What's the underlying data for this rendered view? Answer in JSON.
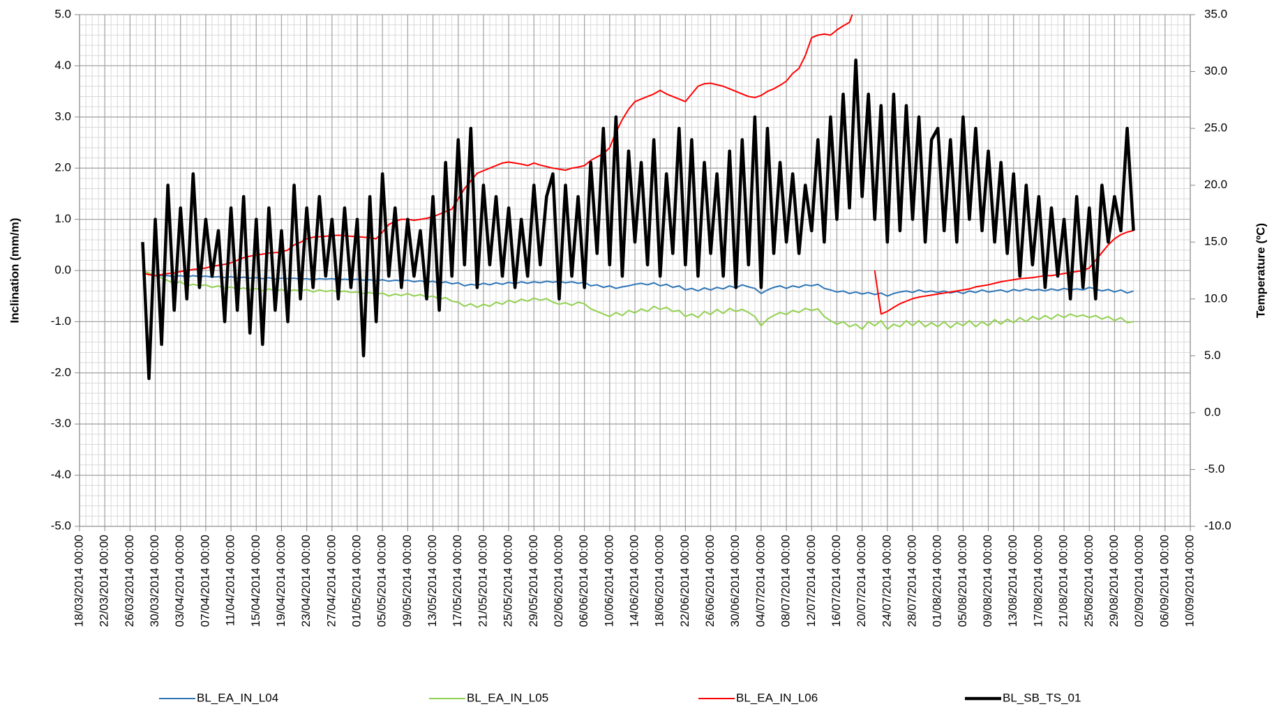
{
  "chart_data": {
    "type": "line",
    "ylabel": "Inclination (mm/m)",
    "y2label": "Temperature (ºC)",
    "xlim": [
      "2014-03-18",
      "2014-09-10"
    ],
    "xticks": [
      {
        "value": "2014-03-18",
        "label": "18/03/2014 00:00"
      },
      {
        "value": "2014-03-22",
        "label": "22/03/2014 00:00"
      },
      {
        "value": "2014-03-26",
        "label": "26/03/2014 00:00"
      },
      {
        "value": "2014-03-30",
        "label": "30/03/2014 00:00"
      },
      {
        "value": "2014-04-03",
        "label": "03/04/2014 00:00"
      },
      {
        "value": "2014-04-07",
        "label": "07/04/2014 00:00"
      },
      {
        "value": "2014-04-11",
        "label": "11/04/2014 00:00"
      },
      {
        "value": "2014-04-15",
        "label": "15/04/2014 00:00"
      },
      {
        "value": "2014-04-19",
        "label": "19/04/2014 00:00"
      },
      {
        "value": "2014-04-23",
        "label": "23/04/2014 00:00"
      },
      {
        "value": "2014-04-27",
        "label": "27/04/2014 00:00"
      },
      {
        "value": "2014-05-01",
        "label": "01/05/2014 00:00"
      },
      {
        "value": "2014-05-05",
        "label": "05/05/2014 00:00"
      },
      {
        "value": "2014-05-09",
        "label": "09/05/2014 00:00"
      },
      {
        "value": "2014-05-13",
        "label": "13/05/2014 00:00"
      },
      {
        "value": "2014-05-17",
        "label": "17/05/2014 00:00"
      },
      {
        "value": "2014-05-21",
        "label": "21/05/2014 00:00"
      },
      {
        "value": "2014-05-25",
        "label": "25/05/2014 00:00"
      },
      {
        "value": "2014-05-29",
        "label": "29/05/2014 00:00"
      },
      {
        "value": "2014-06-02",
        "label": "02/06/2014 00:00"
      },
      {
        "value": "2014-06-06",
        "label": "06/06/2014 00:00"
      },
      {
        "value": "2014-06-10",
        "label": "10/06/2014 00:00"
      },
      {
        "value": "2014-06-14",
        "label": "14/06/2014 00:00"
      },
      {
        "value": "2014-06-18",
        "label": "18/06/2014 00:00"
      },
      {
        "value": "2014-06-22",
        "label": "22/06/2014 00:00"
      },
      {
        "value": "2014-06-26",
        "label": "26/06/2014 00:00"
      },
      {
        "value": "2014-06-30",
        "label": "30/06/2014 00:00"
      },
      {
        "value": "2014-07-04",
        "label": "04/07/2014 00:00"
      },
      {
        "value": "2014-07-08",
        "label": "08/07/2014 00:00"
      },
      {
        "value": "2014-07-12",
        "label": "12/07/2014 00:00"
      },
      {
        "value": "2014-07-16",
        "label": "16/07/2014 00:00"
      },
      {
        "value": "2014-07-20",
        "label": "20/07/2014 00:00"
      },
      {
        "value": "2014-07-24",
        "label": "24/07/2014 00:00"
      },
      {
        "value": "2014-07-28",
        "label": "28/07/2014 00:00"
      },
      {
        "value": "2014-08-01",
        "label": "01/08/2014 00:00"
      },
      {
        "value": "2014-08-05",
        "label": "05/08/2014 00:00"
      },
      {
        "value": "2014-08-09",
        "label": "09/08/2014 00:00"
      },
      {
        "value": "2014-08-13",
        "label": "13/08/2014 00:00"
      },
      {
        "value": "2014-08-17",
        "label": "17/08/2014 00:00"
      },
      {
        "value": "2014-08-21",
        "label": "21/08/2014 00:00"
      },
      {
        "value": "2014-08-25",
        "label": "25/08/2014 00:00"
      },
      {
        "value": "2014-08-29",
        "label": "29/08/2014 00:00"
      },
      {
        "value": "2014-09-02",
        "label": "02/09/2014 00:00"
      },
      {
        "value": "2014-09-06",
        "label": "06/09/2014 00:00"
      },
      {
        "value": "2014-09-10",
        "label": "10/09/2014 00:00"
      }
    ],
    "ylim": [
      -5,
      5
    ],
    "yticks": [
      {
        "value": -5,
        "label": "-5.0"
      },
      {
        "value": -4,
        "label": "-4.0"
      },
      {
        "value": -3,
        "label": "-3.0"
      },
      {
        "value": -2,
        "label": "-2.0"
      },
      {
        "value": -1,
        "label": "-1.0"
      },
      {
        "value": 0,
        "label": "0.0"
      },
      {
        "value": 1,
        "label": "1.0"
      },
      {
        "value": 2,
        "label": "2.0"
      },
      {
        "value": 3,
        "label": "3.0"
      },
      {
        "value": 4,
        "label": "4.0"
      },
      {
        "value": 5,
        "label": "5.0"
      }
    ],
    "y2lim": [
      -10,
      35
    ],
    "y2ticks": [
      {
        "value": -10,
        "label": "-10.0"
      },
      {
        "value": -5,
        "label": "-5.0"
      },
      {
        "value": 0,
        "label": "0.0"
      },
      {
        "value": 5,
        "label": "5.0"
      },
      {
        "value": 10,
        "label": "10.0"
      },
      {
        "value": 15,
        "label": "15.0"
      },
      {
        "value": 20,
        "label": "20.0"
      },
      {
        "value": 25,
        "label": "25.0"
      },
      {
        "value": 30,
        "label": "30.0"
      },
      {
        "value": 35,
        "label": "35.0"
      }
    ],
    "grid": true,
    "minor_grid": true,
    "legend": "bottom",
    "x": [
      "2014-03-28",
      "2014-03-29",
      "2014-03-30",
      "2014-03-31",
      "2014-04-01",
      "2014-04-02",
      "2014-04-03",
      "2014-04-04",
      "2014-04-05",
      "2014-04-06",
      "2014-04-07",
      "2014-04-08",
      "2014-04-09",
      "2014-04-10",
      "2014-04-11",
      "2014-04-12",
      "2014-04-13",
      "2014-04-14",
      "2014-04-15",
      "2014-04-16",
      "2014-04-17",
      "2014-04-18",
      "2014-04-19",
      "2014-04-20",
      "2014-04-21",
      "2014-04-22",
      "2014-04-23",
      "2014-04-24",
      "2014-04-25",
      "2014-04-26",
      "2014-04-27",
      "2014-04-28",
      "2014-04-29",
      "2014-04-30",
      "2014-05-01",
      "2014-05-02",
      "2014-05-03",
      "2014-05-04",
      "2014-05-05",
      "2014-05-06",
      "2014-05-07",
      "2014-05-08",
      "2014-05-09",
      "2014-05-10",
      "2014-05-11",
      "2014-05-12",
      "2014-05-13",
      "2014-05-14",
      "2014-05-15",
      "2014-05-16",
      "2014-05-17",
      "2014-05-18",
      "2014-05-19",
      "2014-05-20",
      "2014-05-21",
      "2014-05-22",
      "2014-05-23",
      "2014-05-24",
      "2014-05-25",
      "2014-05-26",
      "2014-05-27",
      "2014-05-28",
      "2014-05-29",
      "2014-05-30",
      "2014-05-31",
      "2014-06-01",
      "2014-06-02",
      "2014-06-03",
      "2014-06-04",
      "2014-06-05",
      "2014-06-06",
      "2014-06-07",
      "2014-06-08",
      "2014-06-09",
      "2014-06-10",
      "2014-06-11",
      "2014-06-12",
      "2014-06-13",
      "2014-06-14",
      "2014-06-15",
      "2014-06-16",
      "2014-06-17",
      "2014-06-18",
      "2014-06-19",
      "2014-06-20",
      "2014-06-21",
      "2014-06-22",
      "2014-06-23",
      "2014-06-24",
      "2014-06-25",
      "2014-06-26",
      "2014-06-27",
      "2014-06-28",
      "2014-06-29",
      "2014-06-30",
      "2014-07-01",
      "2014-07-02",
      "2014-07-03",
      "2014-07-04",
      "2014-07-05",
      "2014-07-06",
      "2014-07-07",
      "2014-07-08",
      "2014-07-09",
      "2014-07-10",
      "2014-07-11",
      "2014-07-12",
      "2014-07-13",
      "2014-07-14",
      "2014-07-15",
      "2014-07-16",
      "2014-07-17",
      "2014-07-18",
      "2014-07-19",
      "2014-07-20",
      "2014-07-21",
      "2014-07-22",
      "2014-07-23",
      "2014-07-24",
      "2014-07-25",
      "2014-07-26",
      "2014-07-27",
      "2014-07-28",
      "2014-07-29",
      "2014-07-30",
      "2014-07-31",
      "2014-08-01",
      "2014-08-02",
      "2014-08-03",
      "2014-08-04",
      "2014-08-05",
      "2014-08-06",
      "2014-08-07",
      "2014-08-08",
      "2014-08-09",
      "2014-08-10",
      "2014-08-11",
      "2014-08-12",
      "2014-08-13",
      "2014-08-14",
      "2014-08-15",
      "2014-08-16",
      "2014-08-17",
      "2014-08-18",
      "2014-08-19",
      "2014-08-20",
      "2014-08-21",
      "2014-08-22",
      "2014-08-23",
      "2014-08-24",
      "2014-08-25",
      "2014-08-26",
      "2014-08-27",
      "2014-08-28",
      "2014-08-29",
      "2014-08-30",
      "2014-08-31",
      "2014-09-01"
    ],
    "series": [
      {
        "name": "BL_EA_IN_L04",
        "color": "#2e75b6",
        "width": 2,
        "values": [
          -0.05,
          -0.08,
          -0.1,
          -0.1,
          -0.1,
          -0.12,
          -0.1,
          -0.13,
          -0.1,
          -0.12,
          -0.11,
          -0.13,
          -0.12,
          -0.14,
          -0.12,
          -0.15,
          -0.13,
          -0.15,
          -0.14,
          -0.16,
          -0.14,
          -0.17,
          -0.15,
          -0.16,
          -0.15,
          -0.17,
          -0.16,
          -0.18,
          -0.16,
          -0.17,
          -0.16,
          -0.18,
          -0.17,
          -0.18,
          -0.17,
          -0.19,
          -0.18,
          -0.2,
          -0.18,
          -0.21,
          -0.19,
          -0.2,
          -0.19,
          -0.22,
          -0.2,
          -0.23,
          -0.21,
          -0.25,
          -0.22,
          -0.26,
          -0.24,
          -0.3,
          -0.27,
          -0.29,
          -0.25,
          -0.28,
          -0.24,
          -0.27,
          -0.23,
          -0.26,
          -0.22,
          -0.25,
          -0.22,
          -0.24,
          -0.21,
          -0.23,
          -0.21,
          -0.24,
          -0.22,
          -0.25,
          -0.23,
          -0.3,
          -0.28,
          -0.33,
          -0.3,
          -0.35,
          -0.32,
          -0.3,
          -0.27,
          -0.25,
          -0.28,
          -0.24,
          -0.3,
          -0.27,
          -0.33,
          -0.3,
          -0.38,
          -0.35,
          -0.4,
          -0.34,
          -0.38,
          -0.33,
          -0.36,
          -0.3,
          -0.34,
          -0.28,
          -0.32,
          -0.35,
          -0.45,
          -0.38,
          -0.33,
          -0.3,
          -0.35,
          -0.3,
          -0.33,
          -0.28,
          -0.3,
          -0.27,
          -0.35,
          -0.38,
          -0.42,
          -0.4,
          -0.45,
          -0.42,
          -0.46,
          -0.43,
          -0.47,
          -0.44,
          -0.5,
          -0.45,
          -0.42,
          -0.4,
          -0.43,
          -0.38,
          -0.42,
          -0.4,
          -0.43,
          -0.4,
          -0.44,
          -0.41,
          -0.45,
          -0.4,
          -0.43,
          -0.38,
          -0.42,
          -0.4,
          -0.38,
          -0.42,
          -0.37,
          -0.4,
          -0.36,
          -0.39,
          -0.37,
          -0.4,
          -0.36,
          -0.39,
          -0.35,
          -0.38,
          -0.36,
          -0.38,
          -0.33,
          -0.36,
          -0.4,
          -0.37,
          -0.42,
          -0.38,
          -0.44,
          -0.4
        ]
      },
      {
        "name": "BL_EA_IN_L05",
        "color": "#92d050",
        "width": 2,
        "values": [
          0.0,
          -0.05,
          -0.1,
          -0.15,
          -0.2,
          -0.25,
          -0.22,
          -0.3,
          -0.27,
          -0.3,
          -0.28,
          -0.33,
          -0.3,
          -0.35,
          -0.32,
          -0.37,
          -0.34,
          -0.38,
          -0.35,
          -0.4,
          -0.36,
          -0.4,
          -0.37,
          -0.41,
          -0.38,
          -0.4,
          -0.37,
          -0.42,
          -0.38,
          -0.41,
          -0.39,
          -0.42,
          -0.4,
          -0.43,
          -0.42,
          -0.45,
          -0.43,
          -0.47,
          -0.44,
          -0.5,
          -0.46,
          -0.49,
          -0.45,
          -0.5,
          -0.47,
          -0.52,
          -0.5,
          -0.56,
          -0.53,
          -0.6,
          -0.62,
          -0.7,
          -0.65,
          -0.72,
          -0.66,
          -0.7,
          -0.62,
          -0.66,
          -0.58,
          -0.63,
          -0.56,
          -0.6,
          -0.54,
          -0.58,
          -0.55,
          -0.62,
          -0.66,
          -0.63,
          -0.68,
          -0.62,
          -0.65,
          -0.75,
          -0.8,
          -0.85,
          -0.9,
          -0.82,
          -0.88,
          -0.78,
          -0.83,
          -0.75,
          -0.8,
          -0.7,
          -0.76,
          -0.72,
          -0.8,
          -0.78,
          -0.9,
          -0.85,
          -0.92,
          -0.8,
          -0.86,
          -0.76,
          -0.84,
          -0.74,
          -0.8,
          -0.76,
          -0.82,
          -0.9,
          -1.08,
          -0.95,
          -0.88,
          -0.82,
          -0.86,
          -0.78,
          -0.82,
          -0.74,
          -0.78,
          -0.75,
          -0.9,
          -0.98,
          -1.05,
          -1.0,
          -1.1,
          -1.05,
          -1.15,
          -1.0,
          -1.08,
          -0.98,
          -1.15,
          -1.05,
          -1.1,
          -0.98,
          -1.08,
          -0.98,
          -1.1,
          -1.02,
          -1.1,
          -1.0,
          -1.12,
          -1.02,
          -1.08,
          -0.98,
          -1.1,
          -1.0,
          -1.08,
          -0.96,
          -1.05,
          -0.95,
          -1.02,
          -0.92,
          -1.0,
          -0.9,
          -0.96,
          -0.88,
          -0.95,
          -0.86,
          -0.92,
          -0.85,
          -0.9,
          -0.87,
          -0.92,
          -0.88,
          -0.95,
          -0.9,
          -0.98,
          -0.92,
          -1.02,
          -1.0
        ]
      },
      {
        "name": "BL_EA_IN_L06",
        "color": "#ff0000",
        "width": 2,
        "values": [
          -0.05,
          -0.08,
          -0.1,
          -0.08,
          -0.06,
          -0.05,
          -0.02,
          0.0,
          0.02,
          0.03,
          0.05,
          0.08,
          0.1,
          0.12,
          0.15,
          0.2,
          0.25,
          0.28,
          0.3,
          0.32,
          0.34,
          0.35,
          0.36,
          0.4,
          0.5,
          0.55,
          0.62,
          0.65,
          0.66,
          0.67,
          0.68,
          0.69,
          0.68,
          0.67,
          0.66,
          0.65,
          0.64,
          0.62,
          0.75,
          0.9,
          0.96,
          1.0,
          1.0,
          0.98,
          1.0,
          1.02,
          1.05,
          1.1,
          1.15,
          1.2,
          1.4,
          1.6,
          1.75,
          1.9,
          1.95,
          2.0,
          2.05,
          2.1,
          2.12,
          2.1,
          2.08,
          2.05,
          2.1,
          2.06,
          2.03,
          2.0,
          1.98,
          1.96,
          2.0,
          2.02,
          2.05,
          2.15,
          2.22,
          2.28,
          2.4,
          2.7,
          2.95,
          3.15,
          3.3,
          3.35,
          3.4,
          3.45,
          3.52,
          3.45,
          3.4,
          3.35,
          3.3,
          3.45,
          3.6,
          3.65,
          3.66,
          3.63,
          3.6,
          3.55,
          3.5,
          3.45,
          3.4,
          3.38,
          3.42,
          3.5,
          3.55,
          3.62,
          3.7,
          3.85,
          3.95,
          4.2,
          4.55,
          4.6,
          4.62,
          4.6,
          4.7,
          4.78,
          4.85,
          5.2,
          null,
          null,
          0.0,
          -0.85,
          -0.8,
          -0.72,
          -0.65,
          -0.6,
          -0.55,
          -0.52,
          -0.5,
          -0.48,
          -0.46,
          -0.44,
          -0.42,
          -0.4,
          -0.38,
          -0.36,
          -0.32,
          -0.3,
          -0.28,
          -0.25,
          -0.22,
          -0.2,
          -0.18,
          -0.16,
          -0.15,
          -0.14,
          -0.12,
          -0.1,
          -0.1,
          -0.08,
          -0.06,
          -0.04,
          -0.02,
          0.0,
          0.05,
          0.2,
          0.35,
          0.5,
          0.62,
          0.7,
          0.75,
          0.78
        ]
      },
      {
        "name": "BL_SB_TS_01",
        "color": "#000000",
        "width": 4.5,
        "axis": "y2",
        "values": [
          15,
          3,
          17,
          6,
          20,
          9,
          18,
          10,
          21,
          11,
          17,
          12,
          16,
          8,
          18,
          9,
          19,
          7,
          17,
          6,
          18,
          9,
          16,
          8,
          20,
          10,
          18,
          11,
          19,
          12,
          17,
          10,
          18,
          11,
          17,
          5,
          19,
          8,
          21,
          12,
          18,
          11,
          17,
          12,
          16,
          10,
          19,
          9,
          22,
          12,
          24,
          13,
          25,
          11,
          20,
          13,
          19,
          12,
          18,
          11,
          17,
          12,
          20,
          13,
          19,
          21,
          10,
          20,
          12,
          19,
          11,
          22,
          14,
          25,
          13,
          26,
          12,
          23,
          15,
          22,
          13,
          24,
          12,
          21,
          14,
          25,
          13,
          24,
          12,
          22,
          14,
          21,
          12,
          23,
          11,
          24,
          13,
          26,
          11,
          25,
          14,
          22,
          15,
          21,
          14,
          20,
          16,
          24,
          15,
          26,
          17,
          28,
          18,
          31,
          19,
          28,
          17,
          27,
          15,
          28,
          16,
          27,
          17,
          26,
          15,
          24,
          25,
          16,
          24,
          15,
          26,
          17,
          25,
          16,
          23,
          15,
          22,
          14,
          21,
          12,
          20,
          13,
          19,
          11,
          18,
          12,
          17,
          10,
          19,
          11,
          18,
          10,
          20,
          15,
          19,
          16,
          25,
          16
        ]
      }
    ]
  }
}
